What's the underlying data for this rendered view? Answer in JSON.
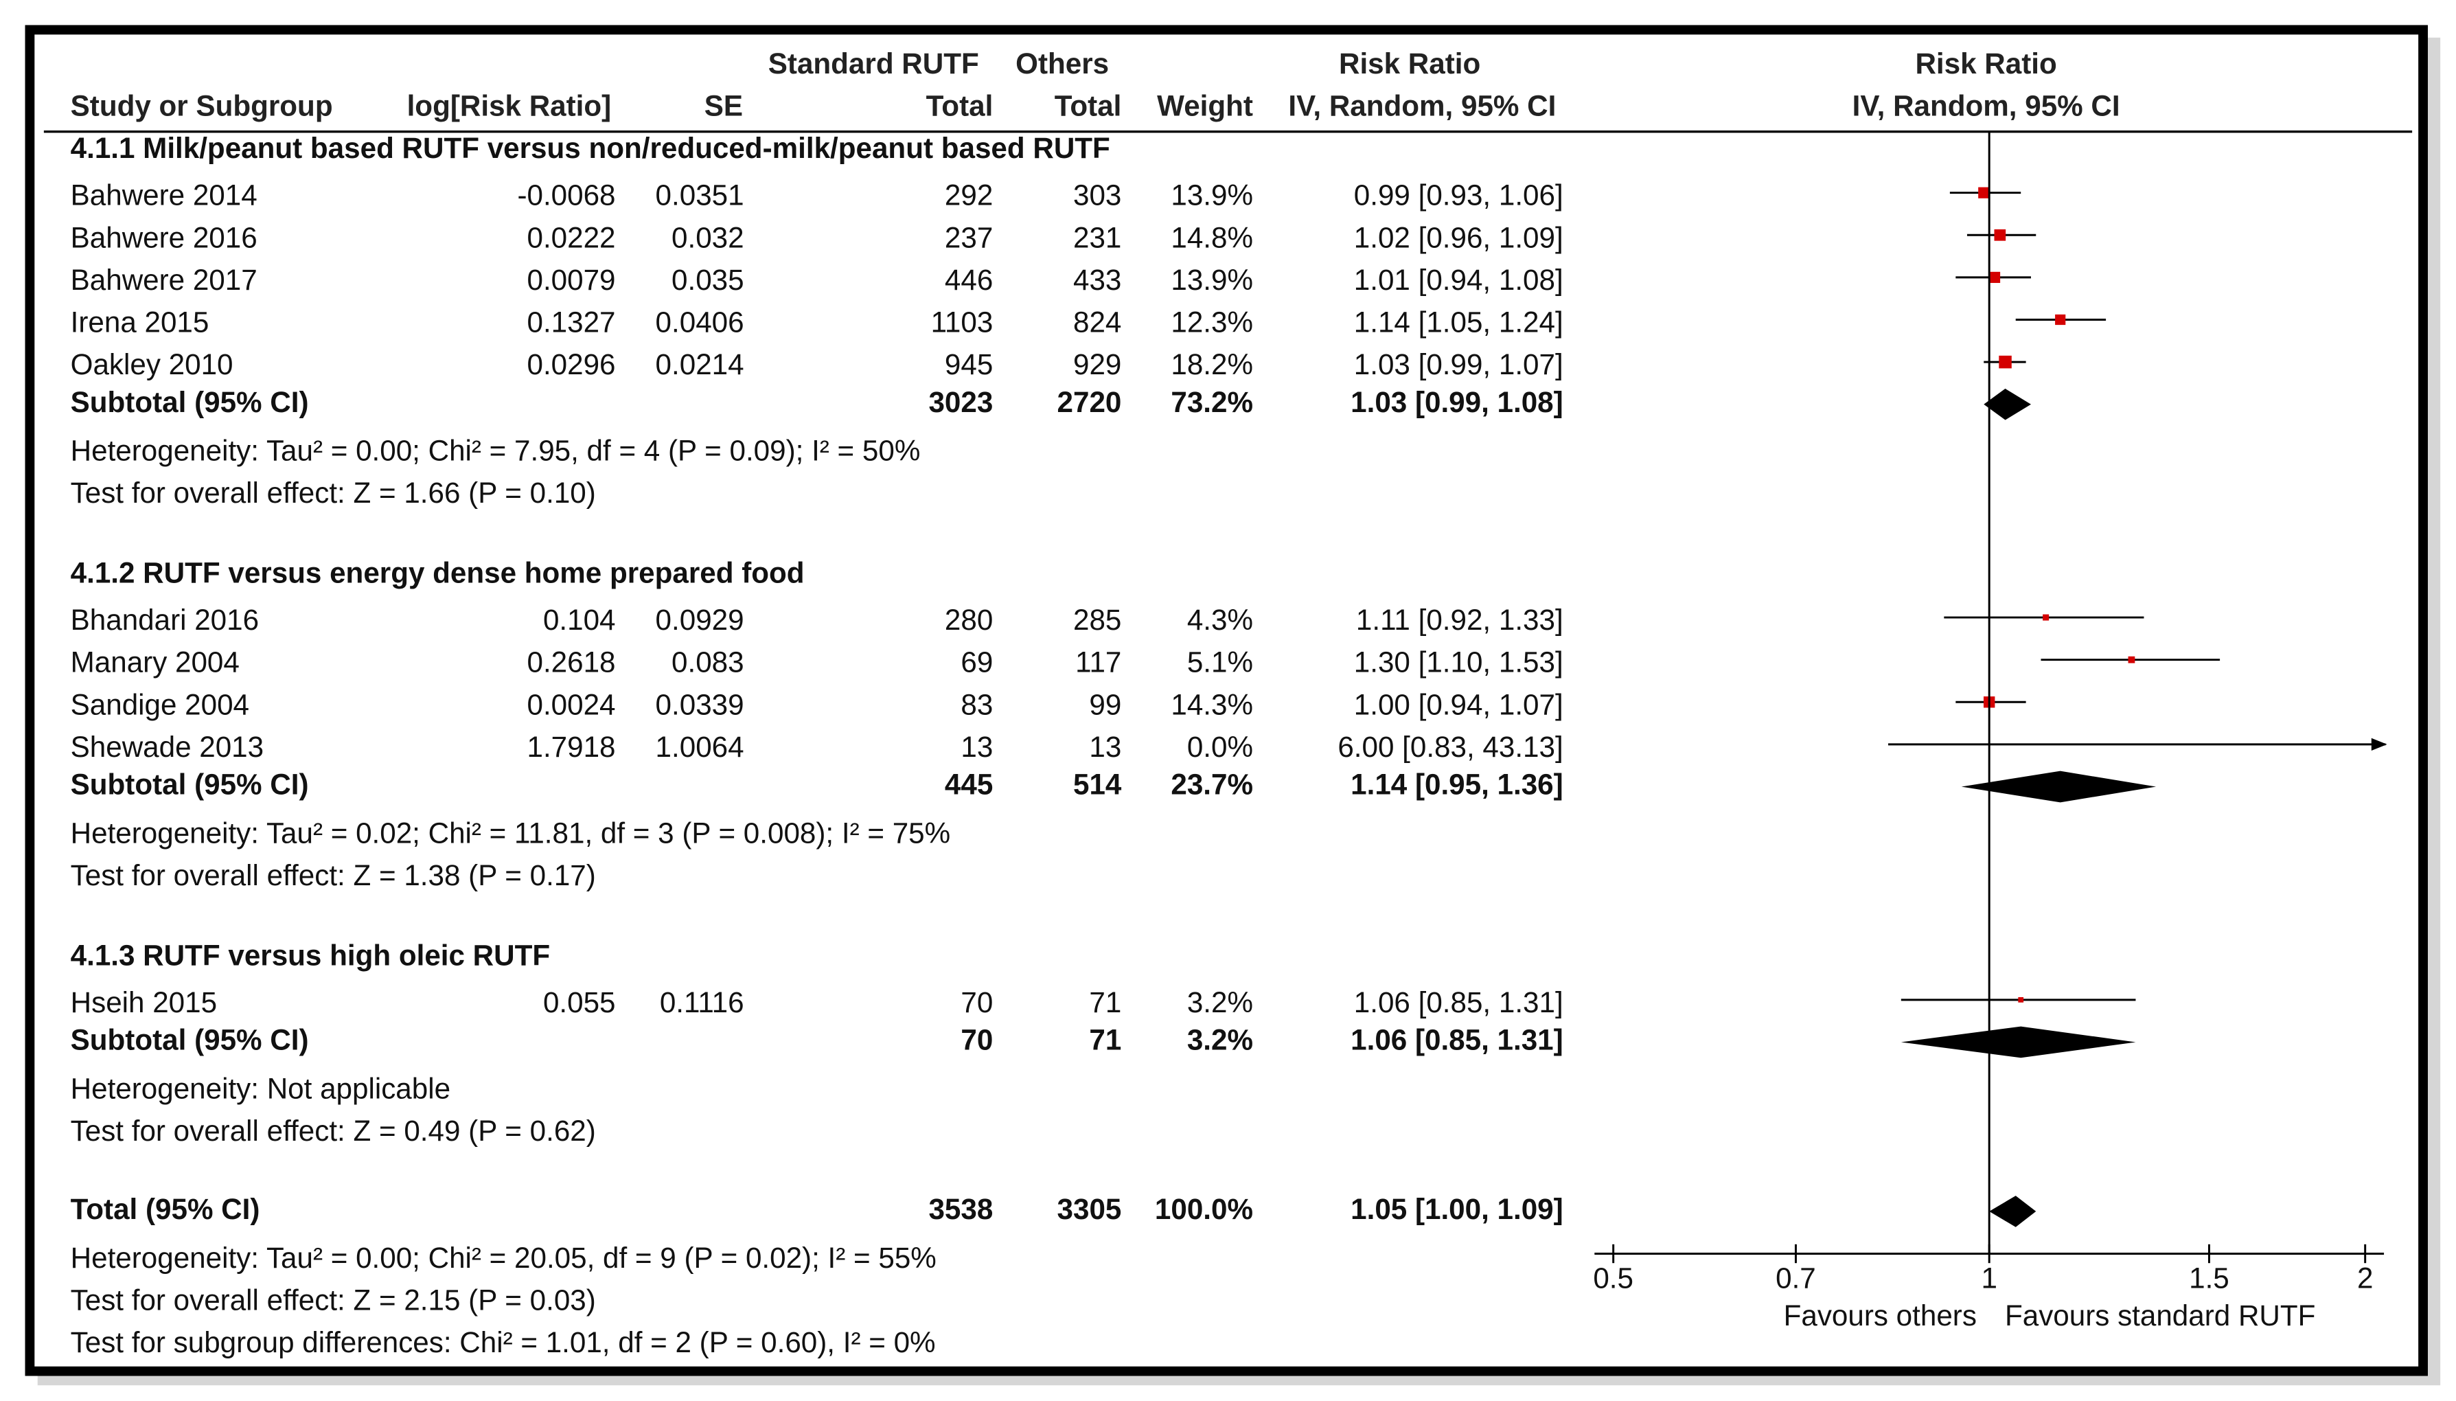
{
  "chart_data": {
    "type": "forest",
    "headers": {
      "study": "Study or Subgroup",
      "log_rr": "log[Risk Ratio]",
      "se": "SE",
      "group1": "Standard RUTF",
      "total1": "Total",
      "group2": "Others",
      "total2": "Total",
      "weight": "Weight",
      "effect_title": "Risk Ratio",
      "effect_method": "IV, Random, 95% CI",
      "plot_title": "Risk Ratio",
      "plot_method": "IV, Random, 95% CI"
    },
    "groups": [
      {
        "title": "4.1.1 Milk/peanut based RUTF versus non/reduced-milk/peanut based RUTF",
        "studies": [
          {
            "name": "Bahwere 2014",
            "log_rr": -0.0068,
            "se": 0.0351,
            "total1": 292,
            "total2": 303,
            "weight": 13.9,
            "weight_label": "13.9%",
            "rr": 0.99,
            "lo": 0.93,
            "hi": 1.06,
            "ci_label": "0.99 [0.93, 1.06]"
          },
          {
            "name": "Bahwere 2016",
            "log_rr": 0.0222,
            "se": 0.032,
            "total1": 237,
            "total2": 231,
            "weight": 14.8,
            "weight_label": "14.8%",
            "rr": 1.02,
            "lo": 0.96,
            "hi": 1.09,
            "ci_label": "1.02 [0.96, 1.09]"
          },
          {
            "name": "Bahwere 2017",
            "log_rr": 0.0079,
            "se": 0.035,
            "total1": 446,
            "total2": 433,
            "weight": 13.9,
            "weight_label": "13.9%",
            "rr": 1.01,
            "lo": 0.94,
            "hi": 1.08,
            "ci_label": "1.01 [0.94, 1.08]"
          },
          {
            "name": "Irena 2015",
            "log_rr": 0.1327,
            "se": 0.0406,
            "total1": 1103,
            "total2": 824,
            "weight": 12.3,
            "weight_label": "12.3%",
            "rr": 1.14,
            "lo": 1.05,
            "hi": 1.24,
            "ci_label": "1.14 [1.05, 1.24]"
          },
          {
            "name": "Oakley 2010",
            "log_rr": 0.0296,
            "se": 0.0214,
            "total1": 945,
            "total2": 929,
            "weight": 18.2,
            "weight_label": "18.2%",
            "rr": 1.03,
            "lo": 0.99,
            "hi": 1.07,
            "ci_label": "1.03 [0.99, 1.07]"
          }
        ],
        "subtotal": {
          "name": "Subtotal (95% CI)",
          "total1": 3023,
          "total2": 2720,
          "weight_label": "73.2%",
          "rr": 1.03,
          "lo": 0.99,
          "hi": 1.08,
          "ci_label": "1.03 [0.99, 1.08]"
        },
        "heterogeneity": "Heterogeneity: Tau² = 0.00; Chi² = 7.95, df = 4 (P = 0.09); I² = 50%",
        "overall": "Test for overall effect: Z = 1.66 (P = 0.10)"
      },
      {
        "title": "4.1.2 RUTF versus energy dense home prepared food",
        "studies": [
          {
            "name": "Bhandari 2016",
            "log_rr": 0.104,
            "se": 0.0929,
            "total1": 280,
            "total2": 285,
            "weight": 4.3,
            "weight_label": "4.3%",
            "rr": 1.11,
            "lo": 0.92,
            "hi": 1.33,
            "ci_label": "1.11 [0.92, 1.33]"
          },
          {
            "name": "Manary 2004",
            "log_rr": 0.2618,
            "se": 0.083,
            "total1": 69,
            "total2": 117,
            "weight": 5.1,
            "weight_label": "5.1%",
            "rr": 1.3,
            "lo": 1.1,
            "hi": 1.53,
            "ci_label": "1.30 [1.10, 1.53]"
          },
          {
            "name": "Sandige 2004",
            "log_rr": 0.0024,
            "se": 0.0339,
            "total1": 83,
            "total2": 99,
            "weight": 14.3,
            "weight_label": "14.3%",
            "rr": 1,
            "lo": 0.94,
            "hi": 1.07,
            "ci_label": "1.00 [0.94, 1.07]"
          },
          {
            "name": "Shewade 2013",
            "log_rr": 1.7918,
            "se": 1.0064,
            "total1": 13,
            "total2": 13,
            "weight": 0,
            "weight_label": "0.0%",
            "rr": 6,
            "lo": 0.83,
            "hi": 43.13,
            "ci_label": "6.00 [0.83, 43.13]"
          }
        ],
        "subtotal": {
          "name": "Subtotal (95% CI)",
          "total1": 445,
          "total2": 514,
          "weight_label": "23.7%",
          "rr": 1.14,
          "lo": 0.95,
          "hi": 1.36,
          "ci_label": "1.14 [0.95, 1.36]"
        },
        "heterogeneity": "Heterogeneity: Tau² = 0.02; Chi² = 11.81, df = 3 (P = 0.008); I² = 75%",
        "overall": "Test for overall effect: Z = 1.38 (P = 0.17)"
      },
      {
        "title": "4.1.3 RUTF versus high oleic RUTF",
        "studies": [
          {
            "name": "Hseih 2015",
            "log_rr": 0.055,
            "se": 0.1116,
            "total1": 70,
            "total2": 71,
            "weight": 3.2,
            "weight_label": "3.2%",
            "rr": 1.06,
            "lo": 0.85,
            "hi": 1.31,
            "ci_label": "1.06 [0.85, 1.31]"
          }
        ],
        "subtotal": {
          "name": "Subtotal (95% CI)",
          "total1": 70,
          "total2": 71,
          "weight_label": "3.2%",
          "rr": 1.06,
          "lo": 0.85,
          "hi": 1.31,
          "ci_label": "1.06 [0.85, 1.31]"
        },
        "heterogeneity": "Heterogeneity: Not applicable",
        "overall": "Test for overall effect: Z = 0.49 (P = 0.62)"
      }
    ],
    "total": {
      "name": "Total (95% CI)",
      "total1": 3538,
      "total2": 3305,
      "weight_label": "100.0%",
      "rr": 1.05,
      "lo": 1,
      "hi": 1.09,
      "ci_label": "1.05 [1.00, 1.09]"
    },
    "total_notes": [
      "Heterogeneity: Tau² = 0.00; Chi² = 20.05, df = 9 (P = 0.02); I² = 55%",
      "Test for overall effect: Z = 2.15 (P = 0.03)",
      "Test for subgroup differences: Chi² = 1.01, df = 2 (P = 0.60), I² = 0%"
    ],
    "xlim": [
      0.5,
      2
    ],
    "xticks": [
      0.5,
      0.7,
      1,
      1.5,
      2
    ],
    "log_x": true,
    "null_value": 1,
    "favours_left": "Favours others",
    "favours_right": "Favours standard RUTF",
    "marker_color": "#d40000",
    "line_color": "#000000"
  }
}
